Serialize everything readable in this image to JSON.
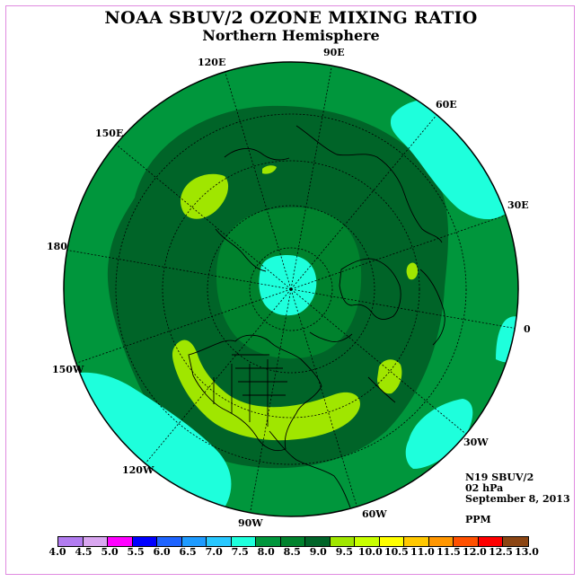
{
  "title": "NOAA SBUV/2 OZONE MIXING RATIO",
  "subtitle": "Northern Hemisphere",
  "longitude_labels": [
    "90E",
    "60E",
    "30E",
    "0",
    "30W",
    "60W",
    "90W",
    "120W",
    "150W",
    "180",
    "150E",
    "120E"
  ],
  "info": {
    "instrument": "N19 SBUV/2",
    "level": "02 hPa",
    "date": "September 8, 2013",
    "units": "PPM"
  },
  "colorbar": {
    "ticks": [
      "4.0",
      "4.5",
      "5.0",
      "5.5",
      "6.0",
      "6.5",
      "7.0",
      "7.5",
      "8.0",
      "8.5",
      "9.0",
      "9.5",
      "10.0",
      "10.5",
      "11.0",
      "11.5",
      "12.0",
      "12.5",
      "13.0"
    ],
    "colors": [
      "#b27cf0",
      "#d9a6f0",
      "#ff00ff",
      "#0000ff",
      "#1e64ff",
      "#1e9bff",
      "#28c8ff",
      "#1effdc",
      "#00963c",
      "#00822d",
      "#006428",
      "#a0e600",
      "#c8ff00",
      "#ffff00",
      "#ffc800",
      "#ff9600",
      "#ff5000",
      "#ff0000",
      "#8b4513"
    ]
  },
  "map_colors": {
    "outer": "#00963c",
    "mid": "#006428",
    "ring": "#00822d",
    "cyan": "#1effdc",
    "lime": "#a0e600"
  }
}
